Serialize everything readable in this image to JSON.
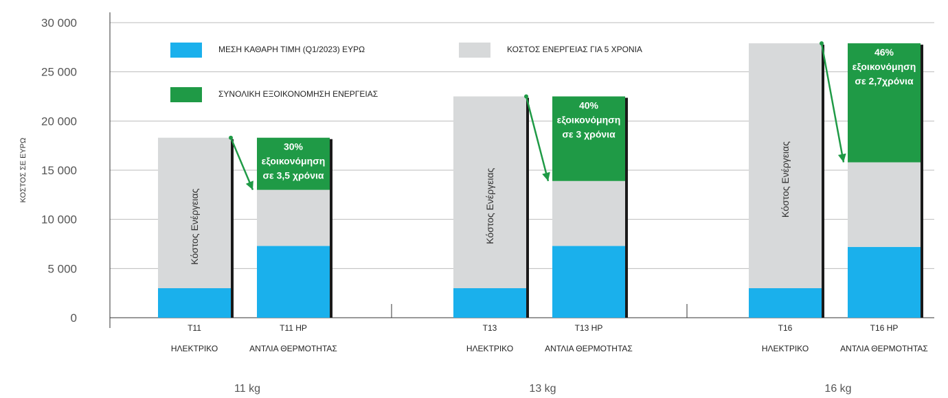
{
  "colors": {
    "price": "#1ab0ec",
    "energy": "#d7d9da",
    "savings": "#1f9a46",
    "arrow": "#1f9a46",
    "shadow": "#1a1a1a",
    "grid": "#bbbbbb"
  },
  "legend": [
    {
      "key": "price",
      "label": "ΜΕΣΗ ΚΑΘΑΡΗ ΤΙΜΗ (Q1/2023) ΕΥΡΩ"
    },
    {
      "key": "energy",
      "label": "ΚΟΣΤΟΣ  ΕΝΕΡΓΕΙΑΣ ΓΙΑ 5 ΧΡΟΝΙΑ"
    },
    {
      "key": "savings",
      "label": "ΣΥΝΟΛΙΚΗ  ΕΞΟΙΚΟΝΟΜΗΣΗ ΕΝΕΡΓΕΙΑΣ"
    }
  ],
  "chart_data": {
    "type": "bar",
    "stacked": true,
    "ylabel": "ΚΟΣΤΟΣ ΣΕ ΕΥΡΩ",
    "ylim": [
      0,
      30000
    ],
    "yticks": [
      {
        "v": 0,
        "label": "0"
      },
      {
        "v": 5000,
        "label": "5 000"
      },
      {
        "v": 10000,
        "label": "10 000"
      },
      {
        "v": 15000,
        "label": "15 000"
      },
      {
        "v": 20000,
        "label": "20 000"
      },
      {
        "v": 25000,
        "label": "25 000"
      },
      {
        "v": 30000,
        "label": "30 000"
      }
    ],
    "grid": true,
    "legend_position": "top-left",
    "groups": [
      {
        "name": "11 kg",
        "bars": [
          {
            "code": "T11",
            "type": "ΗΛΕΚΤΡΙΚΟ",
            "price": 3000,
            "energy": 15300,
            "label": "Κόστος Ενέργειας"
          },
          {
            "code": "T11  HP",
            "type": "ΑΝΤΛΙΑ ΘΕΡΜΟΤΗΤΑΣ",
            "price": 7300,
            "energy": 5700,
            "savings": 5300,
            "savings_lines": [
              "30%",
              "εξοικονόμηση",
              "σε 3,5 χρόνια"
            ]
          }
        ]
      },
      {
        "name": "13 kg",
        "bars": [
          {
            "code": "T13",
            "type": "ΗΛΕΚΤΡΙΚΟ",
            "price": 3000,
            "energy": 19500,
            "label": "Κόστος Ενέργειας"
          },
          {
            "code": "T13  HP",
            "type": "ΑΝΤΛΙΑ ΘΕΡΜΟΤΗΤΑΣ",
            "price": 7300,
            "energy": 6600,
            "savings": 8600,
            "savings_lines": [
              "40%",
              "εξοικονόμηση",
              "σε 3 χρόνια"
            ]
          }
        ]
      },
      {
        "name": "16 kg",
        "bars": [
          {
            "code": "T16",
            "type": "ΗΛΕΚΤΡΙΚΟ",
            "price": 3000,
            "energy": 24900,
            "label": "Κόστος Ενέργειας"
          },
          {
            "code": "T16  HP",
            "type": "ΑΝΤΛΙΑ ΘΕΡΜΟΤΗΤΑΣ",
            "price": 7200,
            "energy": 8600,
            "savings": 12100,
            "savings_lines": [
              "46%",
              "εξοικονόμηση",
              "σε 2,7χρόνια"
            ]
          }
        ]
      }
    ]
  }
}
